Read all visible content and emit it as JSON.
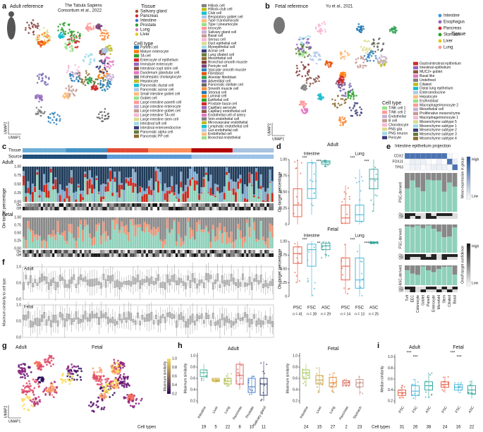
{
  "panels": {
    "a": {
      "label": "a",
      "title": "Adult reference",
      "citation": [
        "The Tabula Sapiens",
        "Consortium et al., 2022"
      ],
      "x_axis": "UMAP1",
      "y_axis": "UMAP2",
      "tissue_title": "Tissue",
      "tissues": [
        {
          "name": "Salivary gland",
          "color": "#a0522d"
        },
        {
          "name": "Pancreas",
          "color": "#d62728"
        },
        {
          "name": "Intestine",
          "color": "#3a6fd8"
        },
        {
          "name": "Prostate",
          "color": "#2ca02c"
        },
        {
          "name": "Lung",
          "color": "#e377c2"
        },
        {
          "name": "Liver",
          "color": "#e6c619"
        }
      ],
      "cell_type_title": "Cell type",
      "cell_types_left": [
        "Paneth cell",
        "Mature enterocyte",
        "TA cell",
        "Enterocyte of epithelium",
        "Immature enterocyte",
        "Intestinal crypt stem cell",
        "Duodenum glandular cell",
        "Intrahepatic cholangiocyte",
        "Hepatocyte",
        "Pancreatic ductal cell",
        "Pancreatic acinar cell",
        "Small intestine goblet cell",
        "Goblet cell",
        "Large intestine paneth cell",
        "Large intestine enterocyte",
        "Large intestine goblet cell",
        "Large intestine TA cell",
        "Large intestine stem cell",
        "Intestinal tuft cell",
        "Intestinal enteroendocrine",
        "Pancreatic alpha cell",
        "Pancreatic PP cell"
      ],
      "cell_types_right": [
        "Hillock cell",
        "Hillock-club cell",
        "Club cell",
        "Respiratory goblet cell",
        "Type II pneumocyte",
        "Type I pneumocyte",
        "Ionocyte",
        "Salivary gland cell",
        "Basal cell",
        "Serous cell",
        "Duct epithelial cell",
        "Myoepithelial cell",
        "Acinar cell",
        "Lung ciliated cell",
        "Mesothelial cell",
        "Bronchial smooth muscle",
        "Pericyte cell",
        "Vascular smooth muscle",
        "Fibroblast",
        "Alveolar fibroblast",
        "Adventitial cell",
        "Pancreatic stellate cell",
        "Smooth muscle cell",
        "Stromal cell",
        "Luminal cell",
        "Epithelial cell",
        "Prostate basal cell",
        "Capillary aerocyte",
        "Capillary endothelial cell",
        "Endothelial cell of artery",
        "Vein endothelial cell",
        "Microvascular endothelial",
        "Lymphatic endothelial cell",
        "Gut endothelial cell",
        "Endothelial cell",
        "Bronchial endothelial"
      ]
    },
    "b": {
      "label": "b",
      "title": "Fetal reference",
      "citation": "Yu et al., 2021",
      "x_axis": "UMAP1",
      "y_axis": "UMAP2",
      "tissue_title": "Tissue",
      "tissues": [
        {
          "name": "Intestine",
          "color": "#3a9ad9"
        },
        {
          "name": "Esophagus",
          "color": "#9467bd"
        },
        {
          "name": "Pancreas",
          "color": "#d62728"
        },
        {
          "name": "Stomach",
          "color": "#2ca02c"
        },
        {
          "name": "Liver",
          "color": "#e6c619"
        },
        {
          "name": "Lung",
          "color": "#ff9896"
        }
      ],
      "cell_type_title": "Cell type",
      "cell_types_left": [
        "T/NK cell 1",
        "T/NK cell 2",
        "Endothelial",
        "B cell",
        "Chondrocyte",
        "PNS glia",
        "PNS neuron",
        "Pericyte"
      ],
      "cell_types_right": [
        "Gastrointestinal epithelium",
        "Intestinal epithelium",
        "MUC2+ goblet",
        "Basal like",
        "Undefined",
        "Ciliated",
        "Distal lung epithelium",
        "Enteroendocrine",
        "Hepatocyte",
        "Erythroblast",
        "Macrophage/monocyte 2",
        "Mesothelial cell",
        "Proliferative mesenchyme",
        "Macrophage/monocyte 1",
        "Mesenchyme subtype 5",
        "Mesenchyme subtype 1",
        "Mesenchyme subtype 2",
        "Mesenchyme subtype 3",
        "Mesenchyme subtype 4"
      ]
    },
    "c": {
      "label": "c",
      "tissue": "Tissue",
      "source": "Source",
      "adult": "Adult",
      "fetal": "Fetal",
      "y_axis": "On-target percentage",
      "yticks": [
        "0.00",
        "0.25",
        "0.50",
        "0.75",
        "1.00"
      ],
      "on": "On",
      "off": "Off"
    },
    "d": {
      "label": "d",
      "adult": "Adult",
      "fetal": "Fetal",
      "y_axis": "On-target percentage",
      "sources": [
        "PSC",
        "FSC",
        "ASC"
      ],
      "colors": [
        "#e8553a",
        "#3bb0d6",
        "#2aa198"
      ],
      "ylim": [
        0,
        1
      ],
      "yticks": [
        0,
        0.25,
        {
          "value": 0.5,
          "label": "0.50"
        },
        0.75,
        {
          "value": 1,
          "label": "1.00"
        }
      ],
      "adult_groups": [
        {
          "name": "Intestine",
          "stars": [
            "***",
            "***"
          ],
          "boxes": [
            [
              0,
              0.12,
              0.3,
              0.55,
              1
            ],
            [
              0.15,
              0.4,
              0.55,
              0.95,
              1
            ],
            [
              0.88,
              0.93,
              0.96,
              0.98,
              1
            ]
          ]
        },
        {
          "name": "Lung",
          "stars": [
            "***",
            "***"
          ],
          "boxes": [
            [
              0,
              0.02,
              0.1,
              0.3,
              0.6
            ],
            [
              0,
              0.05,
              0.15,
              0.3,
              0.85
            ],
            [
              0.2,
              0.55,
              0.7,
              0.85,
              1
            ]
          ]
        }
      ],
      "fetal_groups": [
        {
          "name": "Intestine",
          "stars": [
            "***",
            "**"
          ],
          "boxes": [
            [
              0.25,
              0.6,
              0.78,
              0.9,
              1
            ],
            [
              0,
              0.55,
              0.85,
              0.95,
              1
            ],
            [
              0.7,
              0.85,
              0.92,
              0.97,
              1
            ]
          ]
        },
        {
          "name": "Lung",
          "stars": [
            "***",
            "***"
          ],
          "boxes": [
            [
              0.05,
              0.3,
              0.55,
              0.7,
              0.95
            ],
            [
              0,
              0.15,
              0.3,
              0.7,
              0.95
            ],
            [
              0.95,
              0.97,
              0.98,
              0.99,
              1
            ]
          ]
        }
      ],
      "n": [
        "n = 41",
        "n = 28",
        "n = 29",
        "n = 14",
        "n = 13",
        "n = 25"
      ]
    },
    "e": {
      "label": "e",
      "title": "Intestine epithelium projection",
      "genes": [
        "CDX2",
        "FOXJ1",
        "TP63"
      ],
      "expression_legend": "Mean expression in group",
      "high": "High",
      "low": "Low",
      "confidence_legend": "On/off-target confidence",
      "psc": "PSC-derived",
      "fsc": "FSC-derived",
      "asc": "ASC-derived",
      "on": "On",
      "off": "Off",
      "categories": [
        "Tuft",
        "EEC",
        "Colonocyte",
        "Goblet",
        "Paneth",
        "Enterocyte",
        "Microfold",
        "Stem",
        "Ciliated",
        "Basal"
      ]
    },
    "f": {
      "label": "f",
      "adult": "Adult",
      "fetal": "Fetal",
      "y_axis": "Maximum similarity to cell type",
      "yticks": [
        "0.0",
        "0.5",
        "1.0"
      ]
    },
    "g": {
      "label": "g",
      "adult": "Adult",
      "fetal": "Fetal",
      "x_axis": "UMAP1",
      "y_axis": "UMAP2",
      "colorbar": "Maximum similarity",
      "colorbar_ticks": [
        "0.2",
        "0.4",
        "0.6",
        "0.8",
        "1.0"
      ]
    },
    "h": {
      "label": "h",
      "adult": "Adult",
      "fetal": "Fetal",
      "y_axis": "Maximum similarity",
      "cell_types": "Cell types",
      "ylim": [
        0.15,
        1.05
      ],
      "yticks": [
        0.2,
        0.4,
        0.6,
        0.8,
        {
          "value": 1,
          "label": "1.0"
        }
      ],
      "adult_groups": [
        {
          "name": "Intestine",
          "color": "#4fb39a",
          "count": 19,
          "box": [
            0.55,
            0.63,
            0.7,
            0.75,
            0.85
          ]
        },
        {
          "name": "Liver",
          "color": "#c8a52a",
          "count": 5,
          "box": [
            0.52,
            0.55,
            0.57,
            0.6,
            0.6
          ]
        },
        {
          "name": "Lung",
          "color": "#a7b83a",
          "count": 22,
          "box": [
            0.45,
            0.5,
            0.55,
            0.6,
            0.7
          ]
        },
        {
          "name": "Pancreas",
          "color": "#d9534f",
          "count": 8,
          "box": [
            0.4,
            0.5,
            0.65,
            0.85,
            0.9
          ]
        },
        {
          "name": "Prostate",
          "color": "#3b6fc4",
          "count": 10,
          "box": [
            0.3,
            0.35,
            0.45,
            0.6,
            0.65
          ]
        },
        {
          "name": "Salivary gland",
          "color": "#1d2a5a",
          "count": 11,
          "box": [
            0.2,
            0.3,
            0.5,
            0.6,
            0.9
          ]
        }
      ],
      "fetal_groups": [
        {
          "name": "Intestine",
          "color": "#9dc14b",
          "count": 24,
          "box": [
            0.45,
            0.6,
            0.7,
            0.75,
            0.85
          ]
        },
        {
          "name": "Liver",
          "color": "#c19a2f",
          "count": 15,
          "box": [
            0.35,
            0.5,
            0.57,
            0.65,
            0.8
          ]
        },
        {
          "name": "Lung",
          "color": "#d9822b",
          "count": 27,
          "box": [
            0.35,
            0.45,
            0.52,
            0.62,
            0.7
          ]
        },
        {
          "name": "Pancreas",
          "color": "#d9675a",
          "count": 2,
          "box": [
            0.45,
            0.48,
            0.52,
            0.56,
            0.6
          ]
        },
        {
          "name": "Stomach",
          "color": "#c58d84",
          "count": 23,
          "box": [
            0.3,
            0.45,
            0.52,
            0.58,
            0.65
          ]
        }
      ]
    },
    "i": {
      "label": "i",
      "adult": "Adult",
      "fetal": "Fetal",
      "y_axis": "Median similarity",
      "cell_types": "Cell types",
      "stars": [
        "***",
        "***",
        "***",
        "***"
      ],
      "ylim": [
        0.15,
        1.05
      ],
      "yticks": [
        0.2,
        0.4,
        0.6,
        0.8,
        {
          "value": 1,
          "label": "1.0"
        }
      ],
      "groups": [
        {
          "name": "PSC",
          "color": "#e8553a",
          "count": 31,
          "box": [
            0.25,
            0.3,
            0.35,
            0.4,
            0.5
          ]
        },
        {
          "name": "FSC",
          "color": "#3bb0d6",
          "count": 26,
          "box": [
            0.22,
            0.3,
            0.38,
            0.48,
            0.6
          ]
        },
        {
          "name": "ASC",
          "color": "#2aa198",
          "count": 38,
          "box": [
            0.25,
            0.4,
            0.48,
            0.55,
            0.72
          ]
        },
        {
          "name": "PSC",
          "color": "#e8553a",
          "count": 24,
          "box": [
            0.35,
            0.45,
            0.5,
            0.55,
            0.65
          ]
        },
        {
          "name": "FSC",
          "color": "#3bb0d6",
          "count": 16,
          "box": [
            0.35,
            0.4,
            0.45,
            0.5,
            0.55
          ]
        },
        {
          "name": "ASC",
          "color": "#2aa198",
          "count": 22,
          "box": [
            0.25,
            0.33,
            0.4,
            0.48,
            0.58
          ]
        }
      ]
    }
  }
}
